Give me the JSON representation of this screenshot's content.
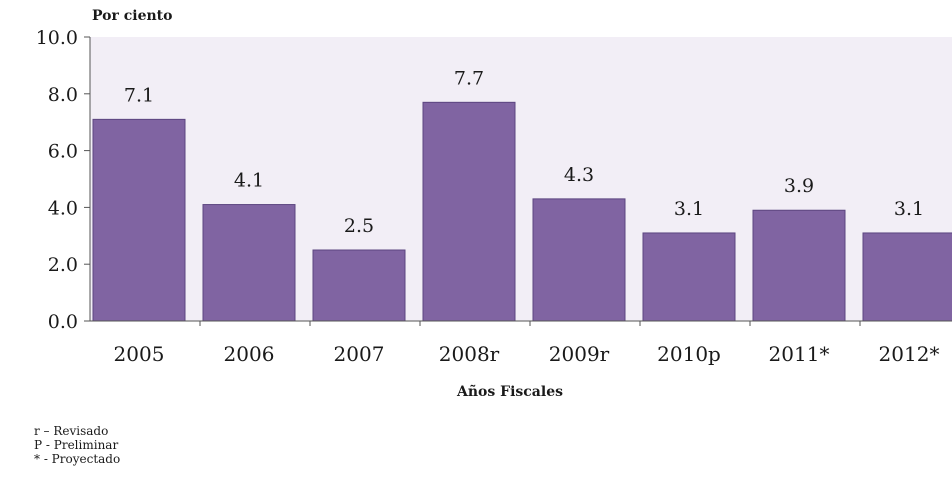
{
  "chart_data": {
    "type": "bar",
    "ylabel": "Por ciento",
    "xlabel": "Años Fiscales",
    "categories": [
      "2005",
      "2006",
      "2007",
      "2008r",
      "2009r",
      "2010p",
      "2011*",
      "2012*"
    ],
    "values": [
      7.1,
      4.1,
      2.5,
      7.7,
      4.3,
      3.1,
      3.9,
      3.1
    ],
    "value_labels": [
      "7.1",
      "4.1",
      "2.5",
      "7.7",
      "4.3",
      "3.1",
      "3.9",
      "3.1"
    ],
    "yticks": [
      "0.0",
      "2.0",
      "4.0",
      "6.0",
      "8.0",
      "10.0"
    ],
    "ylim": [
      0,
      10
    ],
    "grid": false,
    "colors": {
      "bar": "#8064a2",
      "bar_border": "#5c4580",
      "plot_bg": "#f2eef6",
      "axis": "#555555"
    }
  },
  "notes": [
    "r – Revisado",
    "P - Preliminar",
    "* -  Proyectado"
  ]
}
